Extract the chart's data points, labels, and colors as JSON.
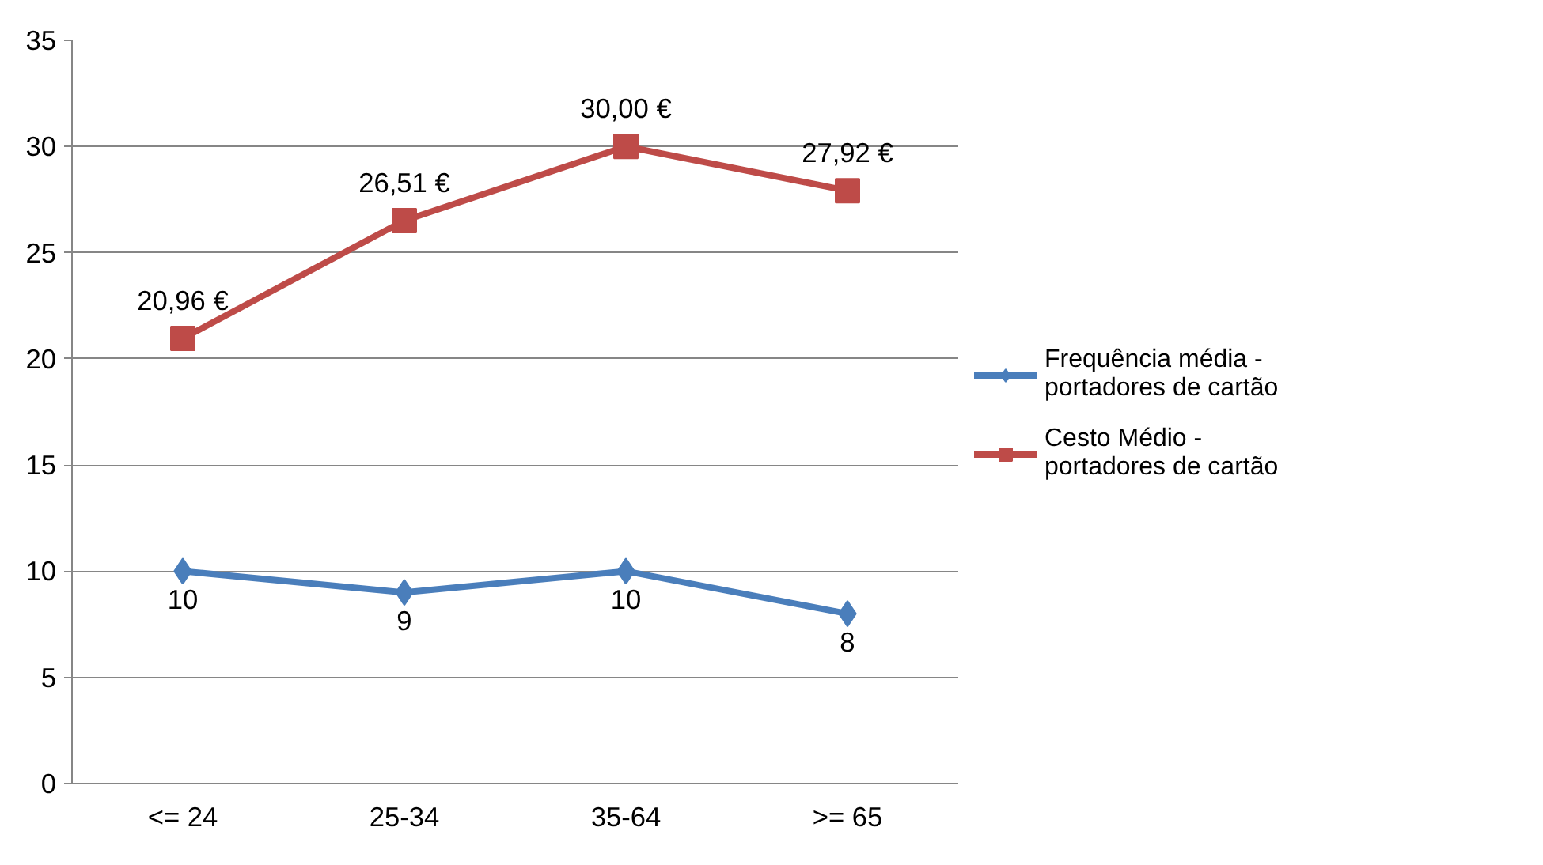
{
  "chart_data": {
    "type": "line",
    "categories": [
      "<= 24",
      "25-34",
      "35-64",
      ">= 65"
    ],
    "series": [
      {
        "name": "Frequência média - portadores de cartão",
        "color": "#4a7ebb",
        "marker": "diamond",
        "values": [
          10,
          9,
          10,
          8
        ],
        "value_labels": [
          "10",
          "9",
          "10",
          "8"
        ]
      },
      {
        "name": "Cesto Médio - portadores de cartão",
        "color": "#be4b48",
        "marker": "square",
        "values": [
          20.96,
          26.51,
          30.0,
          27.92
        ],
        "value_labels": [
          "20,96 €",
          "26,51 €",
          "30,00 €",
          "27,92 €"
        ]
      }
    ],
    "ylim": [
      0,
      35
    ],
    "yticks": [
      0,
      5,
      10,
      15,
      20,
      25,
      30,
      35
    ],
    "grid": "y",
    "legend": "right"
  }
}
